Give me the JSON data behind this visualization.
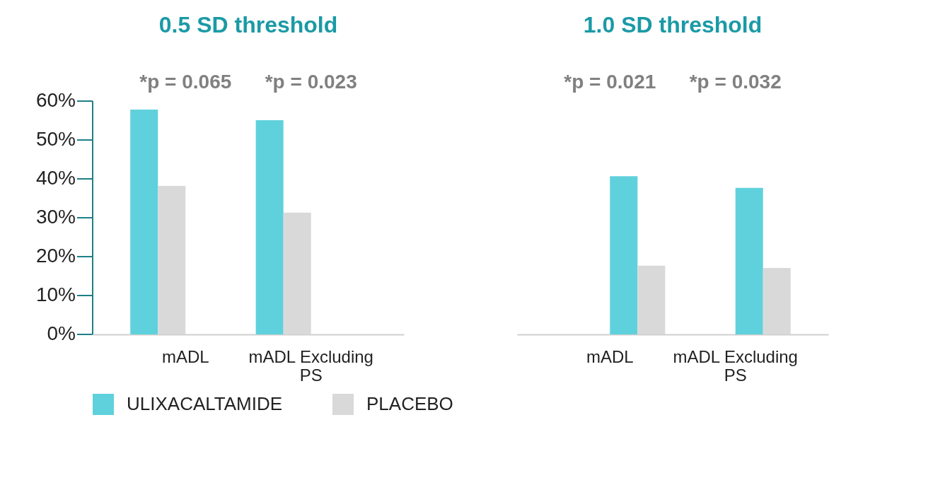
{
  "chart_data": [
    {
      "type": "bar",
      "title": "0.5 SD threshold",
      "categories": [
        "mADL",
        "mADL Excluding PS"
      ],
      "series": [
        {
          "name": "ULIXACALTAMIDE",
          "color": "#5fd1dc",
          "values": [
            57.8,
            55.1
          ]
        },
        {
          "name": "PLACEBO",
          "color": "#d9d9d9",
          "values": [
            38.2,
            31.3
          ]
        }
      ],
      "ylim": [
        0,
        60
      ],
      "yticks": [
        {
          "value": 0,
          "label": "0%"
        },
        {
          "value": 10,
          "label": "10%"
        },
        {
          "value": 20,
          "label": "20%"
        },
        {
          "value": 30,
          "label": "30%"
        },
        {
          "value": 40,
          "label": "40%"
        },
        {
          "value": 50,
          "label": "50%"
        },
        {
          "value": 60,
          "label": "60%"
        }
      ],
      "annotations": [
        "*p = 0.065",
        "*p = 0.023"
      ],
      "legend": "bottom",
      "grid": false
    },
    {
      "type": "bar",
      "title": "1.0 SD threshold",
      "categories": [
        "mADL",
        "mADL Excluding PS"
      ],
      "series": [
        {
          "color": "#5fd1dc",
          "values": [
            40.7,
            37.7
          ]
        },
        {
          "color": "#d9d9d9",
          "values": [
            17.7,
            17.1
          ]
        }
      ],
      "ylim": [
        0,
        60
      ],
      "tick_labels": "x",
      "annotations": [
        "*p = 0.021",
        "*p = 0.032"
      ],
      "grid": false
    }
  ]
}
